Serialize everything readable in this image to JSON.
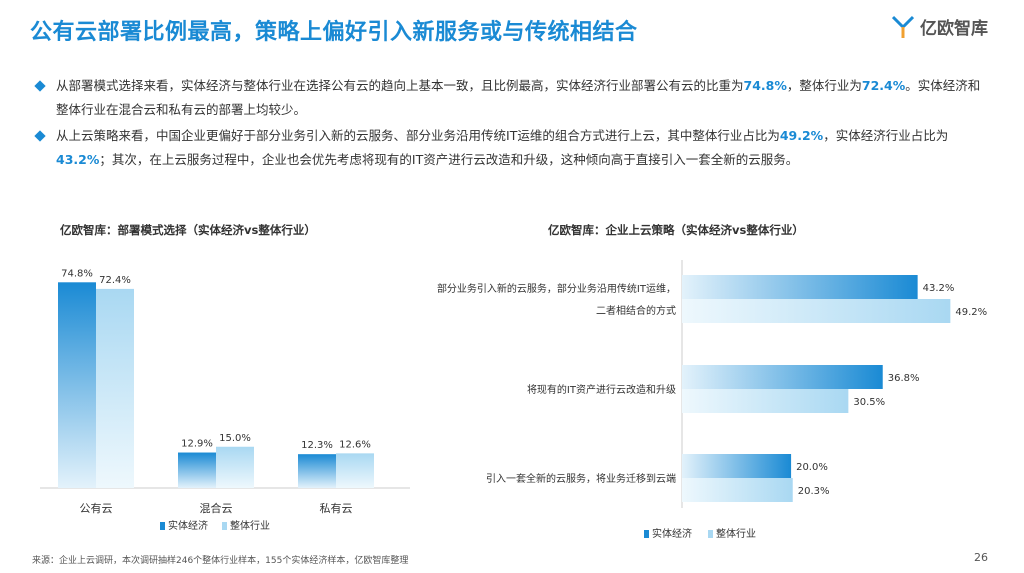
{
  "title": "公有云部署比例最高，策略上偏好引入新服务或与传统相结合",
  "logo_text": "亿欧智库",
  "bullets": [
    {
      "parts": [
        {
          "t": "从部署模式选择来看，实体经济与整体行业在选择公有云的趋向上基本一致，且比例最高，实体经济行业部署公有云的比重为",
          "hl": false
        },
        {
          "t": "74.8%",
          "hl": true
        },
        {
          "t": "，整体行业为",
          "hl": false
        },
        {
          "t": "72.4%",
          "hl": true
        },
        {
          "t": "。实体经济和整体行业在混合云和私有云的部署上均较少。",
          "hl": false
        }
      ]
    },
    {
      "parts": [
        {
          "t": "从上云策略来看，中国企业更偏好于部分业务引入新的云服务、部分业务沿用传统IT运维的组合方式进行上云，其中整体行业占比为",
          "hl": false
        },
        {
          "t": "49.2%",
          "hl": true
        },
        {
          "t": "，实体经济行业占比为",
          "hl": false
        },
        {
          "t": "43.2%",
          "hl": true
        },
        {
          "t": "；其次，在上云服务过程中，企业也会优先考虑将现有的IT资产进行云改造和升级，这种倾向高于直接引入一套全新的云服务。",
          "hl": false
        }
      ]
    }
  ],
  "colors": {
    "accent": "#1a8ad4",
    "series1_dark": "#1a8ad4",
    "series1_light": "#e3f2fb",
    "series2_dark": "#a9d8f2",
    "series2_light": "#eef8fd"
  },
  "chart_data": [
    {
      "type": "bar",
      "title": "亿欧智库：部署模式选择（实体经济vs整体行业）",
      "categories": [
        "公有云",
        "混合云",
        "私有云"
      ],
      "series": [
        {
          "name": "实体经济",
          "values": [
            74.8,
            12.9,
            12.3
          ]
        },
        {
          "name": "整体行业",
          "values": [
            72.4,
            15.0,
            12.6
          ]
        }
      ],
      "value_labels": [
        [
          "74.8%",
          "12.9%",
          "12.3%"
        ],
        [
          "72.4%",
          "15.0%",
          "12.6%"
        ]
      ],
      "ylim": [
        0,
        80
      ],
      "legend": "bottom"
    },
    {
      "type": "bar",
      "orientation": "horizontal",
      "title": "亿欧智库：企业上云策略（实体经济vs整体行业）",
      "categories": [
        [
          "部分业务引入新的云服务，部分业务沿用传统IT运维，",
          "二者相结合的方式"
        ],
        [
          "将现有的IT资产进行云改造和升级"
        ],
        [
          "引入一套全新的云服务，将业务迁移到云端"
        ]
      ],
      "series": [
        {
          "name": "实体经济",
          "values": [
            43.2,
            36.8,
            20.0
          ]
        },
        {
          "name": "整体行业",
          "values": [
            49.2,
            30.5,
            20.3
          ]
        }
      ],
      "value_labels": [
        [
          "43.2%",
          "36.8%",
          "20.0%"
        ],
        [
          "49.2%",
          "30.5%",
          "20.3%"
        ]
      ],
      "xlim": [
        0,
        55
      ],
      "legend": "bottom"
    }
  ],
  "footer": {
    "source": "来源：企业上云调研，本次调研抽样246个整体行业样本，155个实体经济样本，亿欧智库整理",
    "page": "26"
  }
}
